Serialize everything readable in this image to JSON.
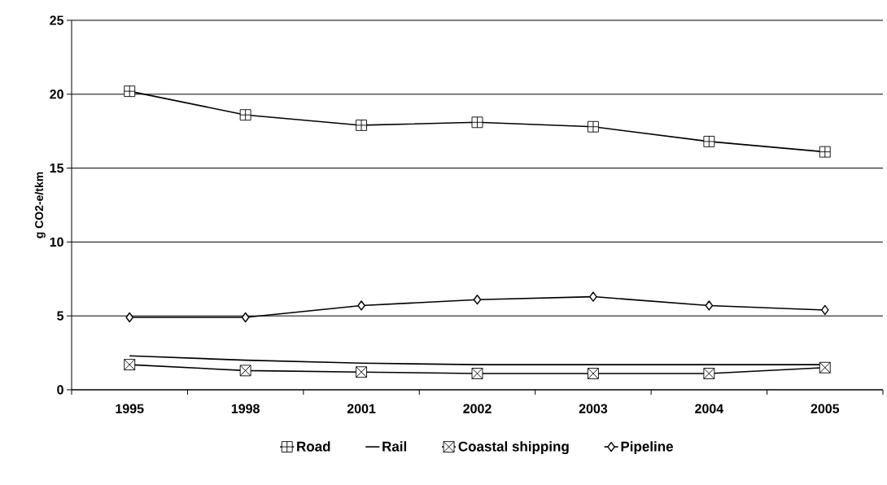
{
  "chart_data": {
    "type": "line",
    "ylabel": "g CO2-e/tkm",
    "categories": [
      "1995",
      "1998",
      "2001",
      "2002",
      "2003",
      "2004",
      "2005"
    ],
    "series": [
      {
        "name": "Road",
        "color": "#000000",
        "marker": "square",
        "values": [
          20.2,
          18.6,
          17.9,
          18.1,
          17.8,
          16.8,
          16.1
        ]
      },
      {
        "name": "Rail",
        "color": "#000000",
        "marker": "none",
        "values": [
          2.3,
          2.0,
          1.8,
          1.7,
          1.7,
          1.7,
          1.7
        ]
      },
      {
        "name": "Coastal shipping",
        "color": "#000000",
        "marker": "square",
        "values": [
          1.7,
          1.3,
          1.2,
          1.1,
          1.1,
          1.1,
          1.5
        ]
      },
      {
        "name": "Pipeline",
        "color": "#000000",
        "marker": "diamond",
        "values": [
          4.9,
          4.9,
          5.7,
          6.1,
          6.3,
          5.7,
          5.4
        ]
      }
    ],
    "ylim": [
      0,
      25
    ],
    "yticks": [
      0,
      5,
      10,
      15,
      20,
      25
    ],
    "grid": "y",
    "legend": "bottom",
    "line_style": "solid"
  }
}
